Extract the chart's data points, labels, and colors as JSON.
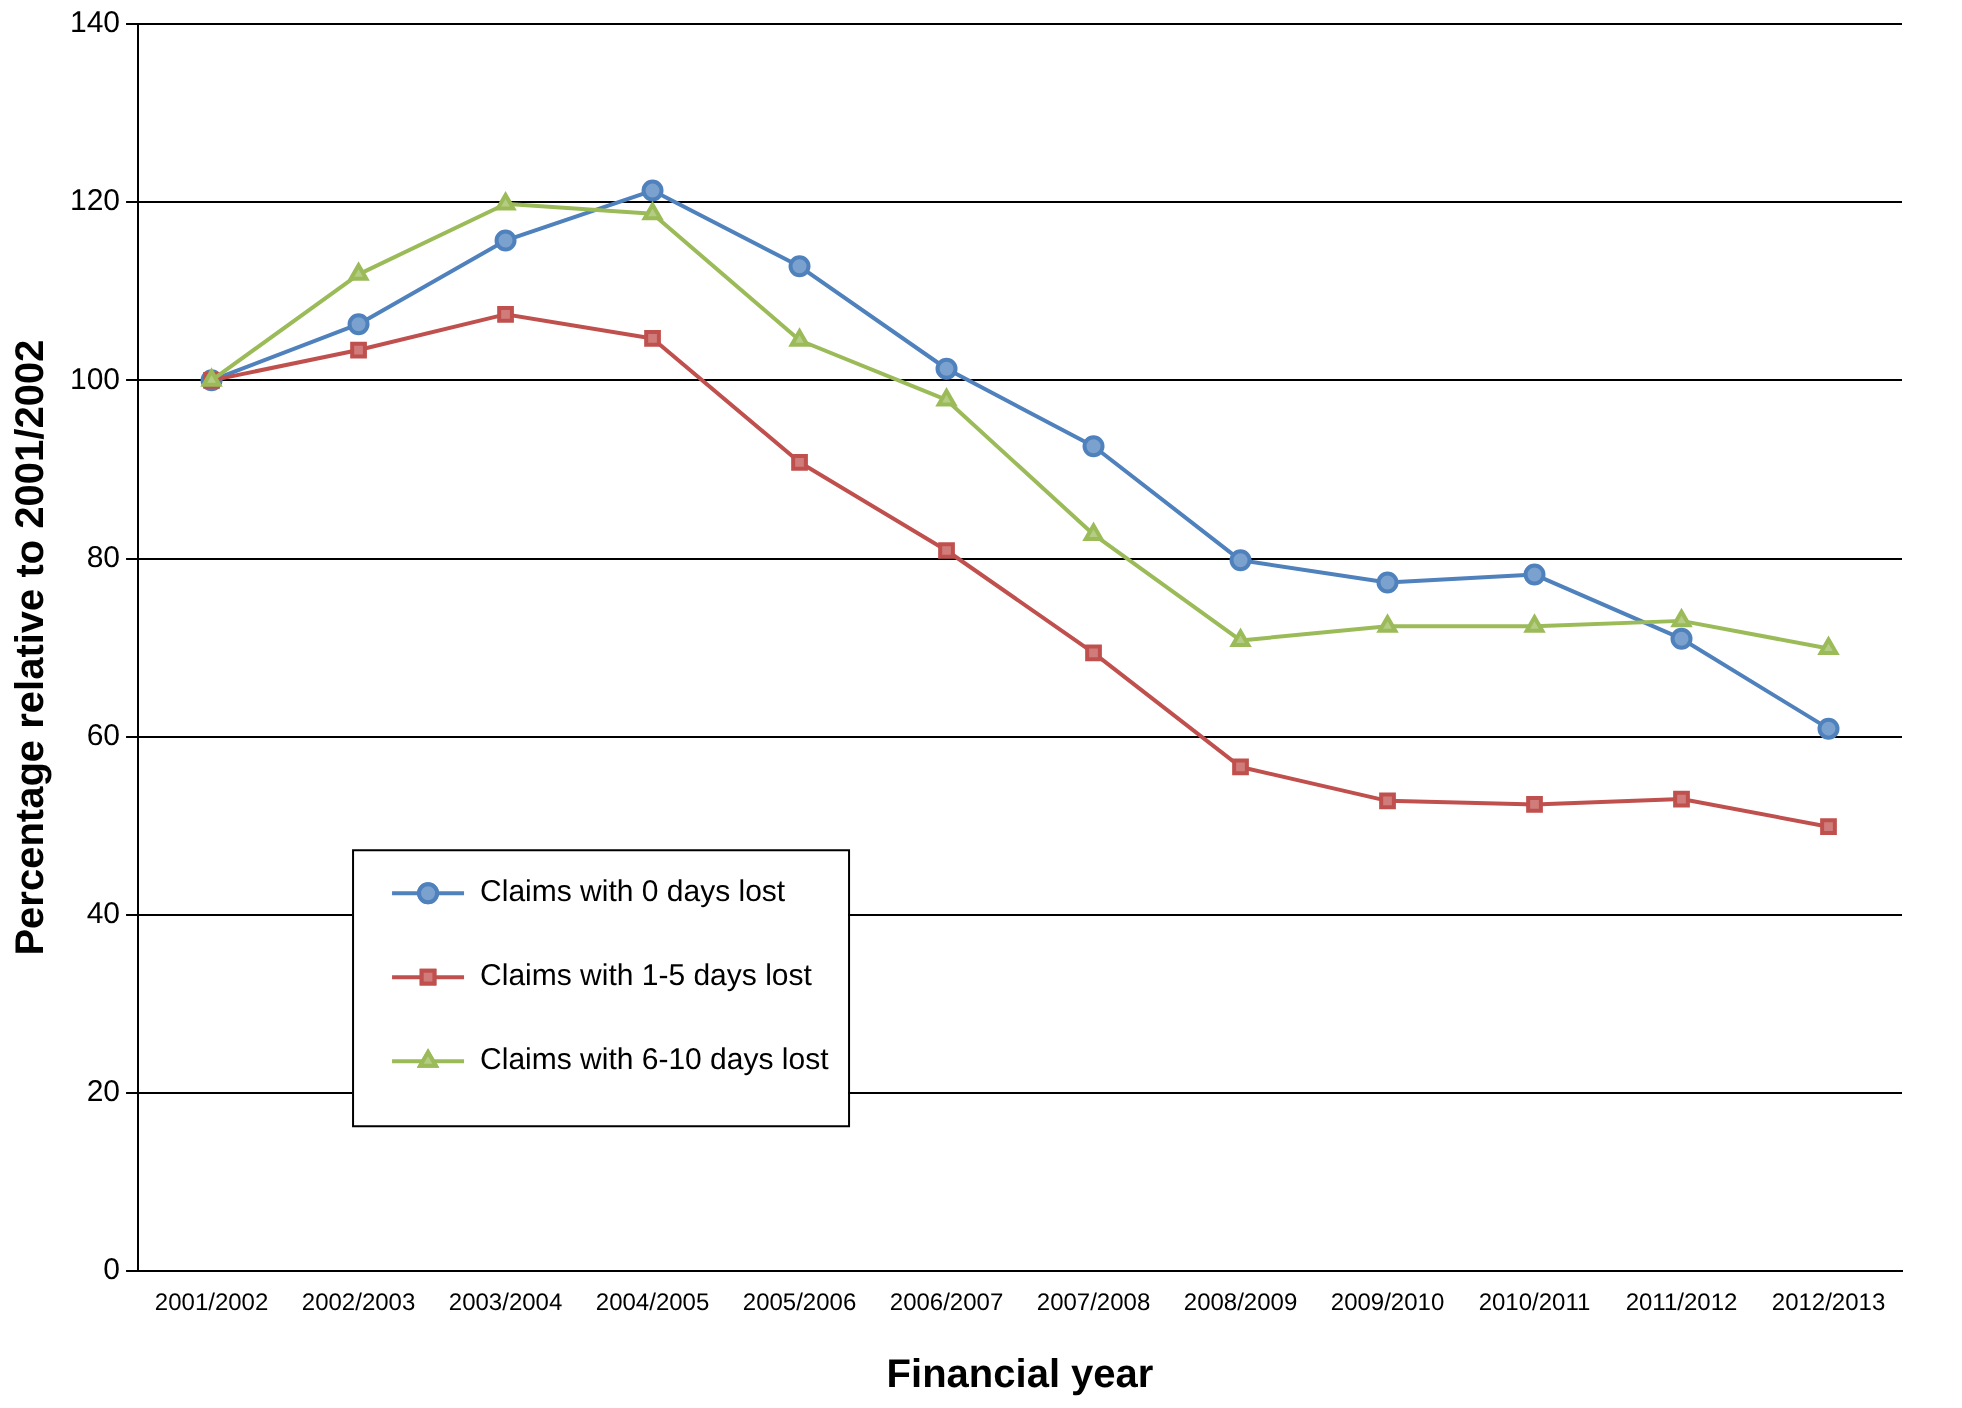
{
  "chart_data": {
    "type": "line",
    "xlabel": "Financial year",
    "ylabel": "Percentage relative to 2001/2002",
    "categories": [
      "2001/2002",
      "2002/2003",
      "2003/2004",
      "2004/2005",
      "2005/2006",
      "2006/2007",
      "2007/2008",
      "2008/2009",
      "2009/2010",
      "2010/2011",
      "2011/2012",
      "2012/2013"
    ],
    "series": [
      {
        "name": "Claims with 0 days lost",
        "color": "#4f81bd",
        "marker": "circle",
        "values": [
          100,
          106.3,
          115.7,
          121.3,
          112.8,
          101.3,
          92.6,
          79.8,
          77.3,
          78.2,
          71.0,
          60.9
        ]
      },
      {
        "name": "Claims with 1-5 days lost",
        "color": "#c0504d",
        "marker": "square",
        "values": [
          100,
          103.4,
          107.4,
          104.7,
          90.8,
          80.9,
          69.4,
          56.6,
          52.8,
          52.4,
          53.0,
          49.9
        ]
      },
      {
        "name": "Claims with 6-10 days lost",
        "color": "#9bbb59",
        "marker": "triangle",
        "values": [
          100,
          111.9,
          119.8,
          118.7,
          104.5,
          97.8,
          82.7,
          70.8,
          72.4,
          72.4,
          73.0,
          69.9
        ]
      }
    ],
    "ylim": [
      0,
      140
    ],
    "yticks": [
      0,
      20,
      40,
      60,
      80,
      100,
      120,
      140
    ],
    "grid": "y",
    "legend": "bottom left",
    "line_style": "solid"
  }
}
